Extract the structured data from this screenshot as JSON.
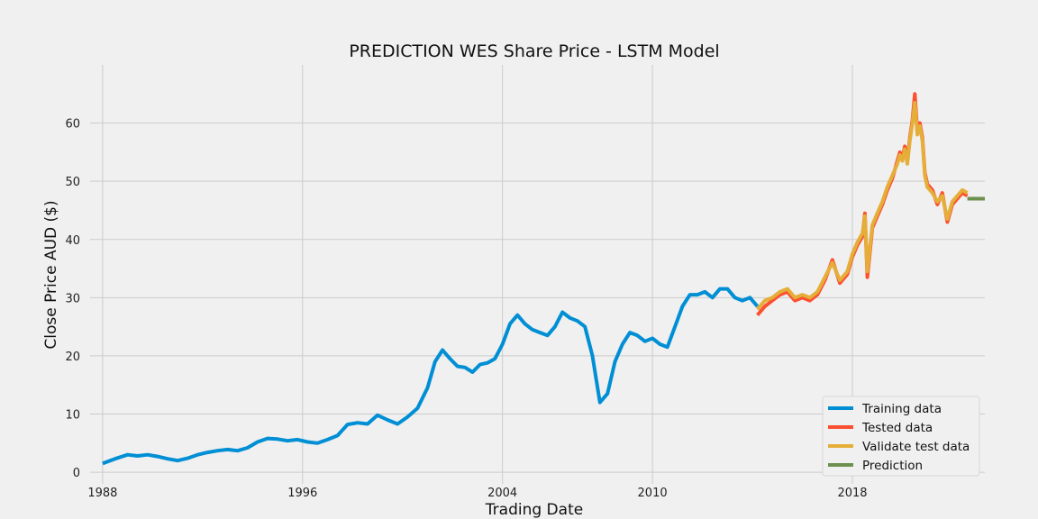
{
  "chart_data": {
    "type": "line",
    "title": "PREDICTION WES Share Price - LSTM Model",
    "xlabel": "Trading Date",
    "ylabel": "Close Price AUD ($)",
    "xlim": [
      1987.5,
      2023.3
    ],
    "ylim": [
      -2,
      70
    ],
    "x_ticks": [
      1988,
      1996,
      2004,
      2010,
      2018
    ],
    "x_tick_labels": [
      "1988",
      "1996",
      "2004",
      "2010",
      "2018"
    ],
    "y_ticks": [
      0,
      10,
      20,
      30,
      40,
      50,
      60
    ],
    "y_tick_labels": [
      "0",
      "10",
      "20",
      "30",
      "40",
      "50",
      "60"
    ],
    "grid": true,
    "legend_position": "bottom-right",
    "series": [
      {
        "name": "Training data",
        "color": "#008fd5",
        "x": [
          1988.0,
          1988.5,
          1989.0,
          1989.4,
          1989.8,
          1990.2,
          1990.6,
          1991.0,
          1991.4,
          1991.8,
          1992.2,
          1992.6,
          1993.0,
          1993.4,
          1993.8,
          1994.2,
          1994.6,
          1995.0,
          1995.4,
          1995.8,
          1996.2,
          1996.6,
          1997.0,
          1997.4,
          1997.8,
          1998.2,
          1998.6,
          1999.0,
          1999.4,
          1999.8,
          2000.2,
          2000.6,
          2001.0,
          2001.3,
          2001.6,
          2001.9,
          2002.2,
          2002.5,
          2002.8,
          2003.1,
          2003.4,
          2003.7,
          2004.0,
          2004.3,
          2004.6,
          2004.9,
          2005.2,
          2005.5,
          2005.8,
          2006.1,
          2006.4,
          2006.7,
          2007.0,
          2007.3,
          2007.6,
          2007.9,
          2008.2,
          2008.5,
          2008.8,
          2009.1,
          2009.4,
          2009.7,
          2010.0,
          2010.3,
          2010.6,
          2010.9,
          2011.2,
          2011.5,
          2011.8,
          2012.1,
          2012.4,
          2012.7,
          2013.0,
          2013.3,
          2013.6,
          2013.9,
          2014.2
        ],
        "y": [
          1.5,
          2.3,
          3.0,
          2.8,
          3.0,
          2.7,
          2.3,
          2.0,
          2.4,
          3.0,
          3.4,
          3.7,
          3.9,
          3.7,
          4.2,
          5.2,
          5.8,
          5.7,
          5.4,
          5.6,
          5.2,
          5.0,
          5.6,
          6.3,
          8.2,
          8.5,
          8.3,
          9.8,
          9.0,
          8.3,
          9.5,
          11.0,
          14.5,
          19.0,
          21.0,
          19.5,
          18.2,
          18.0,
          17.2,
          18.5,
          18.8,
          19.5,
          22.0,
          25.5,
          27.0,
          25.5,
          24.5,
          24.0,
          23.5,
          25.0,
          27.5,
          26.5,
          26.0,
          25.0,
          20.0,
          12.0,
          13.5,
          19.0,
          22.0,
          24.0,
          23.5,
          22.5,
          23.0,
          22.0,
          21.5,
          25.0,
          28.5,
          30.5,
          30.5,
          31.0,
          30.0,
          31.5,
          31.5,
          30.0,
          29.5,
          30.0,
          28.5
        ]
      },
      {
        "name": "Tested data",
        "color": "#fc4f30",
        "x": [
          2014.2,
          2014.5,
          2014.8,
          2015.1,
          2015.4,
          2015.7,
          2016.0,
          2016.3,
          2016.6,
          2016.9,
          2017.2,
          2017.5,
          2017.8,
          2018.0,
          2018.2,
          2018.4,
          2018.5,
          2018.6,
          2018.8,
          2019.0,
          2019.2,
          2019.4,
          2019.6,
          2019.8,
          2019.9,
          2020.0,
          2020.1,
          2020.2,
          2020.3,
          2020.4,
          2020.5,
          2020.6,
          2020.7,
          2020.8,
          2020.9,
          2021.0,
          2021.2,
          2021.4,
          2021.6,
          2021.8,
          2022.0,
          2022.2,
          2022.4,
          2022.6
        ],
        "y": [
          27.0,
          28.5,
          29.5,
          30.5,
          31.0,
          29.5,
          30.0,
          29.5,
          30.5,
          33.0,
          36.5,
          32.5,
          34.0,
          37.0,
          39.0,
          40.5,
          44.5,
          33.5,
          42.0,
          44.0,
          46.0,
          48.5,
          50.5,
          53.5,
          55.0,
          54.0,
          56.0,
          53.5,
          57.5,
          60.5,
          65.0,
          58.5,
          60.0,
          57.5,
          51.5,
          49.5,
          48.5,
          46.0,
          48.0,
          43.0,
          46.0,
          47.0,
          48.0,
          47.5
        ]
      },
      {
        "name": "Validate test data",
        "color": "#e5ae38",
        "x": [
          2014.2,
          2014.5,
          2014.8,
          2015.1,
          2015.4,
          2015.7,
          2016.0,
          2016.3,
          2016.6,
          2016.9,
          2017.2,
          2017.5,
          2017.8,
          2018.0,
          2018.2,
          2018.4,
          2018.5,
          2018.6,
          2018.8,
          2019.0,
          2019.2,
          2019.4,
          2019.6,
          2019.8,
          2019.9,
          2020.0,
          2020.1,
          2020.2,
          2020.3,
          2020.4,
          2020.5,
          2020.6,
          2020.7,
          2020.8,
          2020.9,
          2021.0,
          2021.2,
          2021.4,
          2021.6,
          2021.8,
          2022.0,
          2022.2,
          2022.4,
          2022.6
        ],
        "y": [
          28.0,
          29.5,
          30.0,
          31.0,
          31.5,
          30.0,
          30.5,
          30.0,
          31.0,
          33.5,
          36.0,
          33.0,
          34.5,
          37.5,
          39.5,
          41.0,
          44.0,
          34.5,
          42.5,
          44.5,
          46.5,
          49.0,
          51.0,
          53.0,
          54.5,
          53.5,
          55.5,
          53.0,
          57.0,
          60.0,
          63.5,
          58.0,
          59.5,
          57.0,
          51.0,
          49.0,
          48.0,
          46.5,
          47.5,
          43.5,
          46.5,
          47.5,
          48.5,
          48.0
        ]
      },
      {
        "name": "Prediction",
        "color": "#6d904f",
        "x": [
          2022.6,
          2023.3
        ],
        "y": [
          47.0,
          47.0
        ]
      }
    ]
  }
}
